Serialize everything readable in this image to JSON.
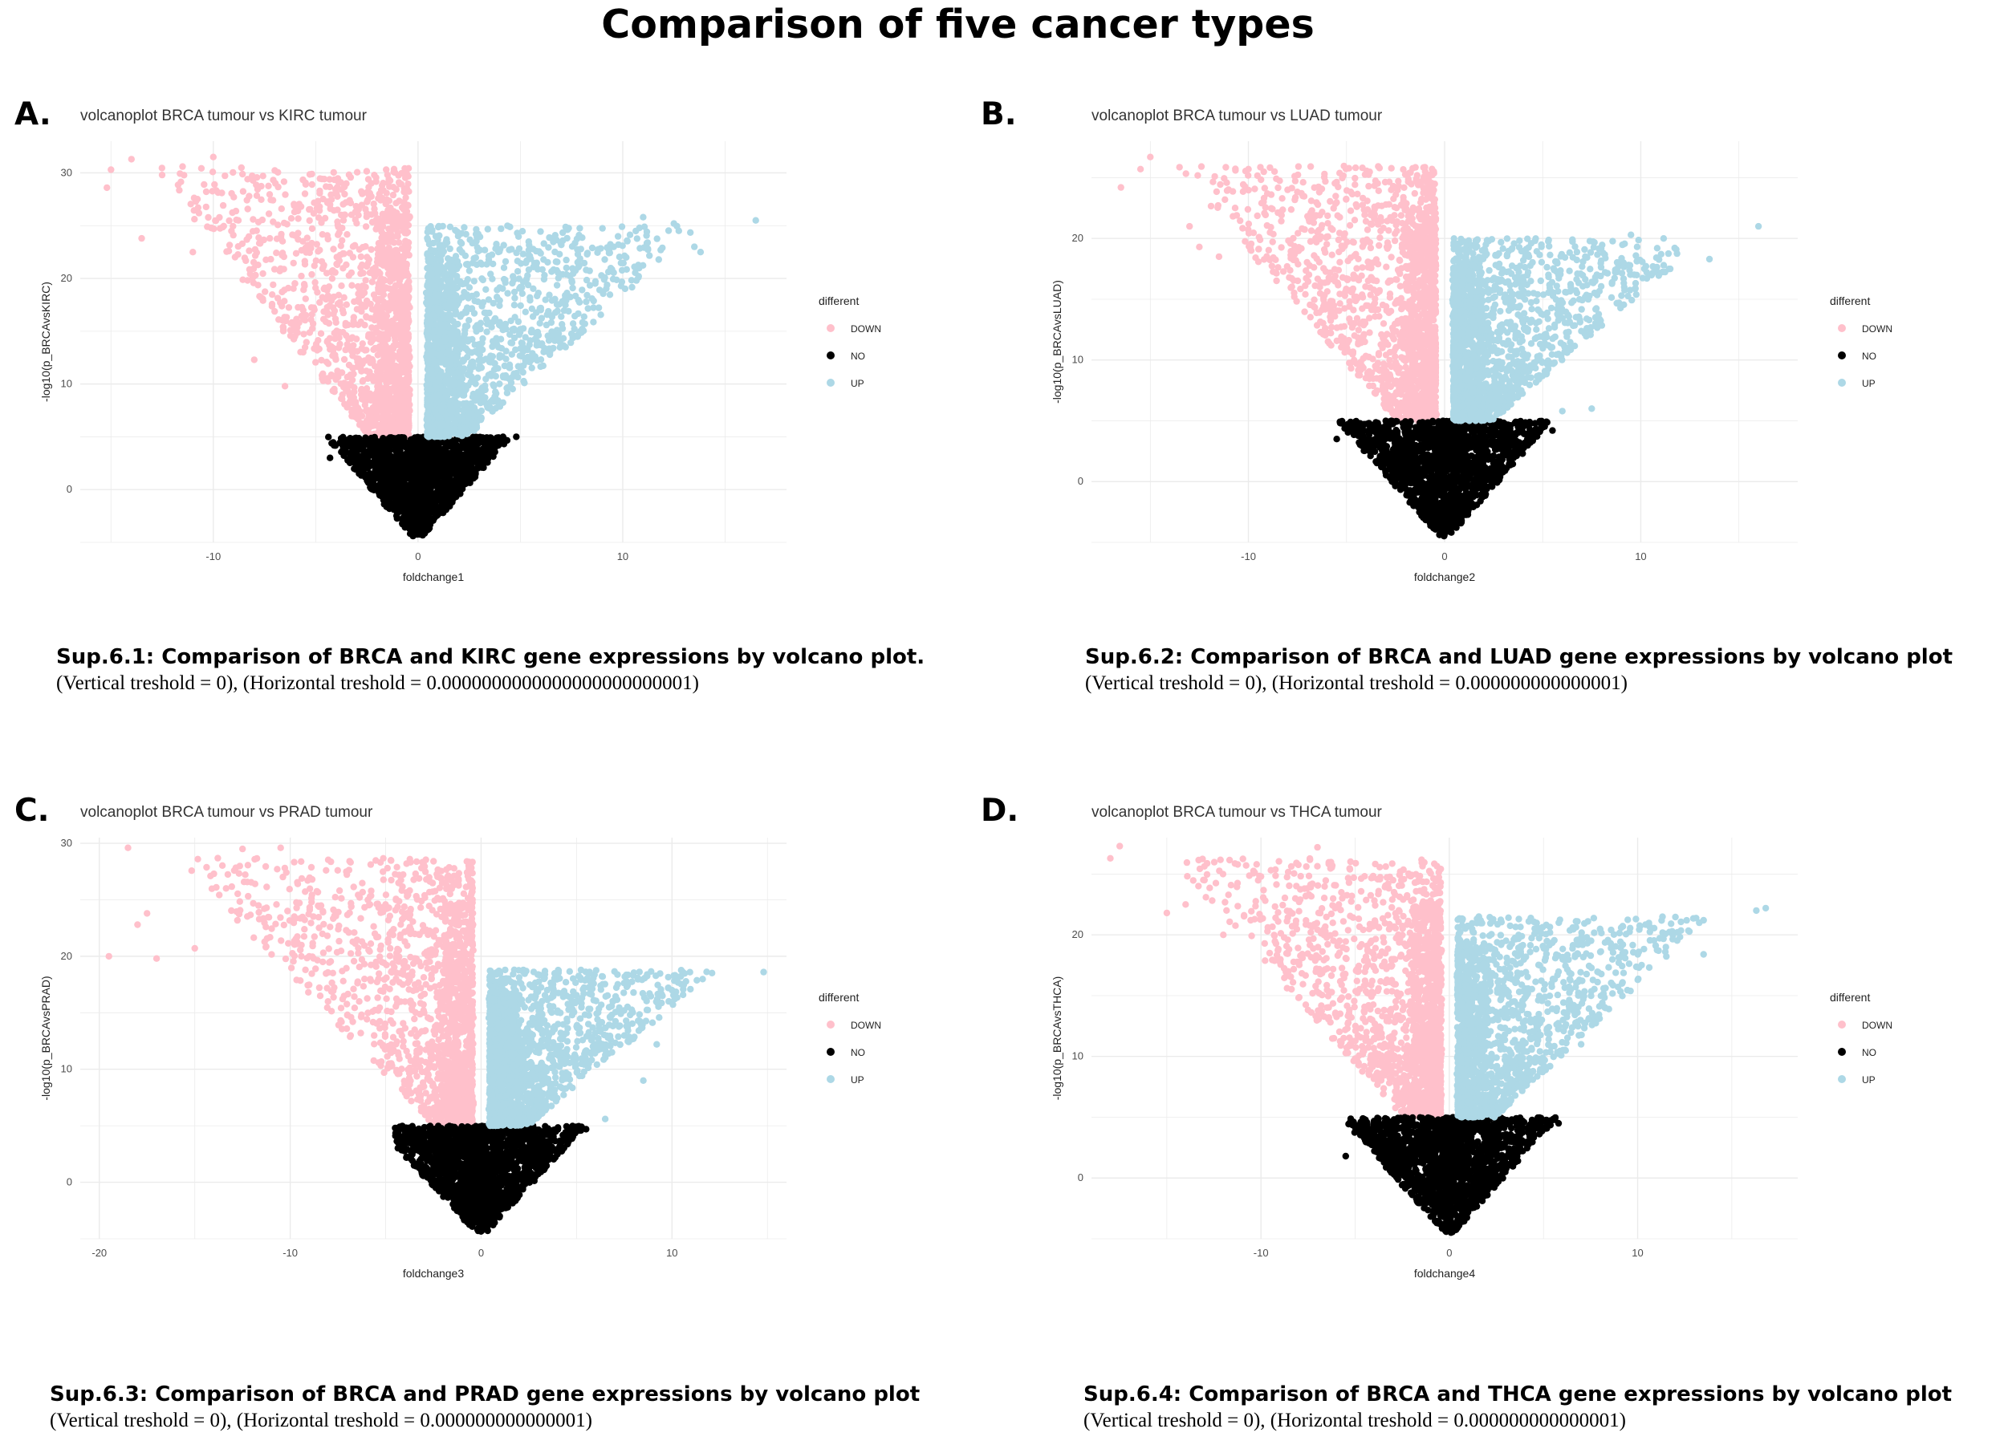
{
  "page_title": "Comparison of five cancer types",
  "colors": {
    "DOWN": "#ffc0cb",
    "NO": "#000000",
    "UP": "#add8e6",
    "grid": "#ebebeb"
  },
  "panels": [
    {
      "letter": "A.",
      "caption_title": "Sup.6.1: Comparison of BRCA and KIRC gene expressions by volcano plot.",
      "caption_sub": "(Vertical treshold = 0), (Horizontal treshold = 0.0000000000000000000000001)"
    },
    {
      "letter": "B.",
      "caption_title": "Sup.6.2: Comparison of  BRCA and LUAD gene expressions by volcano plot",
      "caption_sub": "(Vertical treshold = 0), (Horizontal treshold = 0.000000000000001)"
    },
    {
      "letter": "C.",
      "caption_title": "Sup.6.3: Comparison of  BRCA and PRAD gene expressions by volcano plot",
      "caption_sub": "(Vertical treshold = 0), (Horizontal treshold = 0.000000000000001)"
    },
    {
      "letter": "D.",
      "caption_title": "Sup.6.4: Comparison of  BRCA and THCA gene expressions by volcano plot",
      "caption_sub": "(Vertical treshold = 0), (Horizontal treshold = 0.000000000000001)"
    }
  ],
  "chart_data": [
    {
      "type": "scatter",
      "title": "volcanoplot BRCA tumour vs KIRC tumour",
      "xlabel": "foldchange1",
      "ylabel": "-log10(p_BRCAvsKIRC)",
      "xlim": [
        -16.5,
        18
      ],
      "ylim": [
        -5,
        33
      ],
      "xticks": [
        -10,
        0,
        10
      ],
      "yticks": [
        0,
        10,
        20,
        30
      ],
      "grid": true,
      "legend": {
        "title": "different",
        "position": "right",
        "entries": [
          "DOWN",
          "NO",
          "UP"
        ]
      },
      "series": [
        {
          "name": "DOWN",
          "shape": {
            "xmin": -15.2,
            "xmax": -0.3,
            "ymin": 5,
            "ymax": 31.5
          },
          "outliers": [
            [
              -14,
              31.3
            ],
            [
              -10,
              31.5
            ],
            [
              -15,
              30.3
            ],
            [
              -11.5,
              30.6
            ],
            [
              -12.5,
              29.8
            ],
            [
              -15.2,
              28.6
            ],
            [
              -9,
              27.7
            ],
            [
              -13.5,
              23.8
            ],
            [
              -11,
              22.5
            ],
            [
              -8,
              12.3
            ],
            [
              -6.5,
              9.8
            ]
          ]
        },
        {
          "name": "NO",
          "shape": {
            "xmin": -4.5,
            "xmax": 4.5,
            "ymin": -4.5,
            "ymax": 5
          },
          "outliers": [
            [
              -4.3,
              3.0
            ],
            [
              4.8,
              5.0
            ]
          ]
        },
        {
          "name": "UP",
          "shape": {
            "xmin": 0.3,
            "xmax": 16.5,
            "ymin": 5,
            "ymax": 26
          },
          "outliers": [
            [
              16.5,
              25.5
            ],
            [
              13.8,
              22.5
            ],
            [
              13.5,
              23
            ],
            [
              11,
              25.8
            ],
            [
              12.5,
              25.2
            ]
          ]
        }
      ]
    },
    {
      "type": "scatter",
      "title": "volcanoplot BRCA tumour vs LUAD tumour",
      "xlabel": "foldchange2",
      "ylabel": "-log10(p_BRCAvsLUAD)",
      "xlim": [
        -18,
        18
      ],
      "ylim": [
        -5,
        28
      ],
      "xticks": [
        -10,
        0,
        10
      ],
      "yticks": [
        0,
        10,
        20
      ],
      "grid": true,
      "legend": {
        "title": "different",
        "position": "right",
        "entries": [
          "DOWN",
          "NO",
          "UP"
        ]
      },
      "series": [
        {
          "name": "DOWN",
          "shape": {
            "xmin": -16.5,
            "xmax": -0.3,
            "ymin": 5,
            "ymax": 27
          },
          "outliers": [
            [
              -15,
              26.7
            ],
            [
              -10,
              25.7
            ],
            [
              -15.5,
              25.7
            ],
            [
              -16.5,
              24.2
            ],
            [
              -8,
              24
            ],
            [
              -13,
              21
            ],
            [
              -12.5,
              19.3
            ],
            [
              -11.5,
              18.5
            ]
          ]
        },
        {
          "name": "NO",
          "shape": {
            "xmin": -5.5,
            "xmax": 5.5,
            "ymin": -4.5,
            "ymax": 5
          },
          "outliers": [
            [
              -5.5,
              3.5
            ],
            [
              5.5,
              4.2
            ]
          ]
        },
        {
          "name": "UP",
          "shape": {
            "xmin": 0.3,
            "xmax": 16,
            "ymin": 5,
            "ymax": 21
          },
          "outliers": [
            [
              16,
              21
            ],
            [
              13.5,
              18.3
            ],
            [
              11.5,
              17.5
            ],
            [
              9.5,
              20.3
            ],
            [
              6,
              5.8
            ],
            [
              7.5,
              6
            ]
          ]
        }
      ]
    },
    {
      "type": "scatter",
      "title": "volcanoplot BRCA tumour vs PRAD tumour",
      "xlabel": "foldchange3",
      "ylabel": "-log10(p_BRCAvsPRAD)",
      "xlim": [
        -21,
        16
      ],
      "ylim": [
        -5,
        30.5
      ],
      "xticks": [
        -20,
        -10,
        0,
        10
      ],
      "yticks": [
        0,
        10,
        20,
        30
      ],
      "grid": true,
      "legend": {
        "title": "different",
        "position": "right",
        "entries": [
          "DOWN",
          "NO",
          "UP"
        ]
      },
      "series": [
        {
          "name": "DOWN",
          "shape": {
            "xmin": -19.5,
            "xmax": -0.3,
            "ymin": 5,
            "ymax": 29.7
          },
          "outliers": [
            [
              -18.5,
              29.6
            ],
            [
              -12.5,
              29.5
            ],
            [
              -10.5,
              29.6
            ],
            [
              -19.5,
              20
            ],
            [
              -17,
              19.8
            ],
            [
              -15,
              20.7
            ],
            [
              -18,
              22.8
            ],
            [
              -17.5,
              23.8
            ],
            [
              -14,
              27.3
            ]
          ]
        },
        {
          "name": "NO",
          "shape": {
            "xmin": -4.5,
            "xmax": 5.5,
            "ymin": -4.5,
            "ymax": 5
          },
          "outliers": [
            [
              5.5,
              4.7
            ],
            [
              -4.5,
              4.8
            ]
          ]
        },
        {
          "name": "UP",
          "shape": {
            "xmin": 0.3,
            "xmax": 14.8,
            "ymin": 5,
            "ymax": 19.8
          },
          "outliers": [
            [
              14.8,
              18.6
            ],
            [
              10,
              17
            ],
            [
              9.5,
              16.5
            ],
            [
              9.2,
              12.2
            ],
            [
              8.5,
              9
            ],
            [
              6.5,
              5.6
            ]
          ]
        }
      ]
    },
    {
      "type": "scatter",
      "title": "volcanoplot BRCA tumour vs THCA tumour",
      "xlabel": "foldchange4",
      "ylabel": "-log10(p_BRCAvsTHCA)",
      "xlim": [
        -19,
        18.5
      ],
      "ylim": [
        -5,
        28
      ],
      "xticks": [
        -10,
        0,
        10
      ],
      "yticks": [
        0,
        10,
        20
      ],
      "grid": true,
      "legend": {
        "title": "different",
        "position": "right",
        "entries": [
          "DOWN",
          "NO",
          "UP"
        ]
      },
      "series": [
        {
          "name": "DOWN",
          "shape": {
            "xmin": -18,
            "xmax": -0.3,
            "ymin": 5,
            "ymax": 27.3
          },
          "outliers": [
            [
              -18,
              26.3
            ],
            [
              -17.5,
              27.3
            ],
            [
              -7,
              27.2
            ],
            [
              -15,
              21.8
            ],
            [
              -14,
              22.5
            ],
            [
              -12,
              20
            ],
            [
              -13,
              24.5
            ],
            [
              -10,
              24.8
            ]
          ]
        },
        {
          "name": "NO",
          "shape": {
            "xmin": -5.5,
            "xmax": 5.8,
            "ymin": -4.5,
            "ymax": 5
          },
          "outliers": [
            [
              -5.5,
              1.8
            ],
            [
              5.8,
              4.5
            ]
          ]
        },
        {
          "name": "UP",
          "shape": {
            "xmin": 0.3,
            "xmax": 16.8,
            "ymin": 5,
            "ymax": 22.5
          },
          "outliers": [
            [
              16.8,
              22.2
            ],
            [
              16.3,
              22
            ],
            [
              13.5,
              21.2
            ],
            [
              13.5,
              18.4
            ],
            [
              11.5,
              19
            ],
            [
              7,
              11
            ]
          ]
        }
      ]
    }
  ]
}
